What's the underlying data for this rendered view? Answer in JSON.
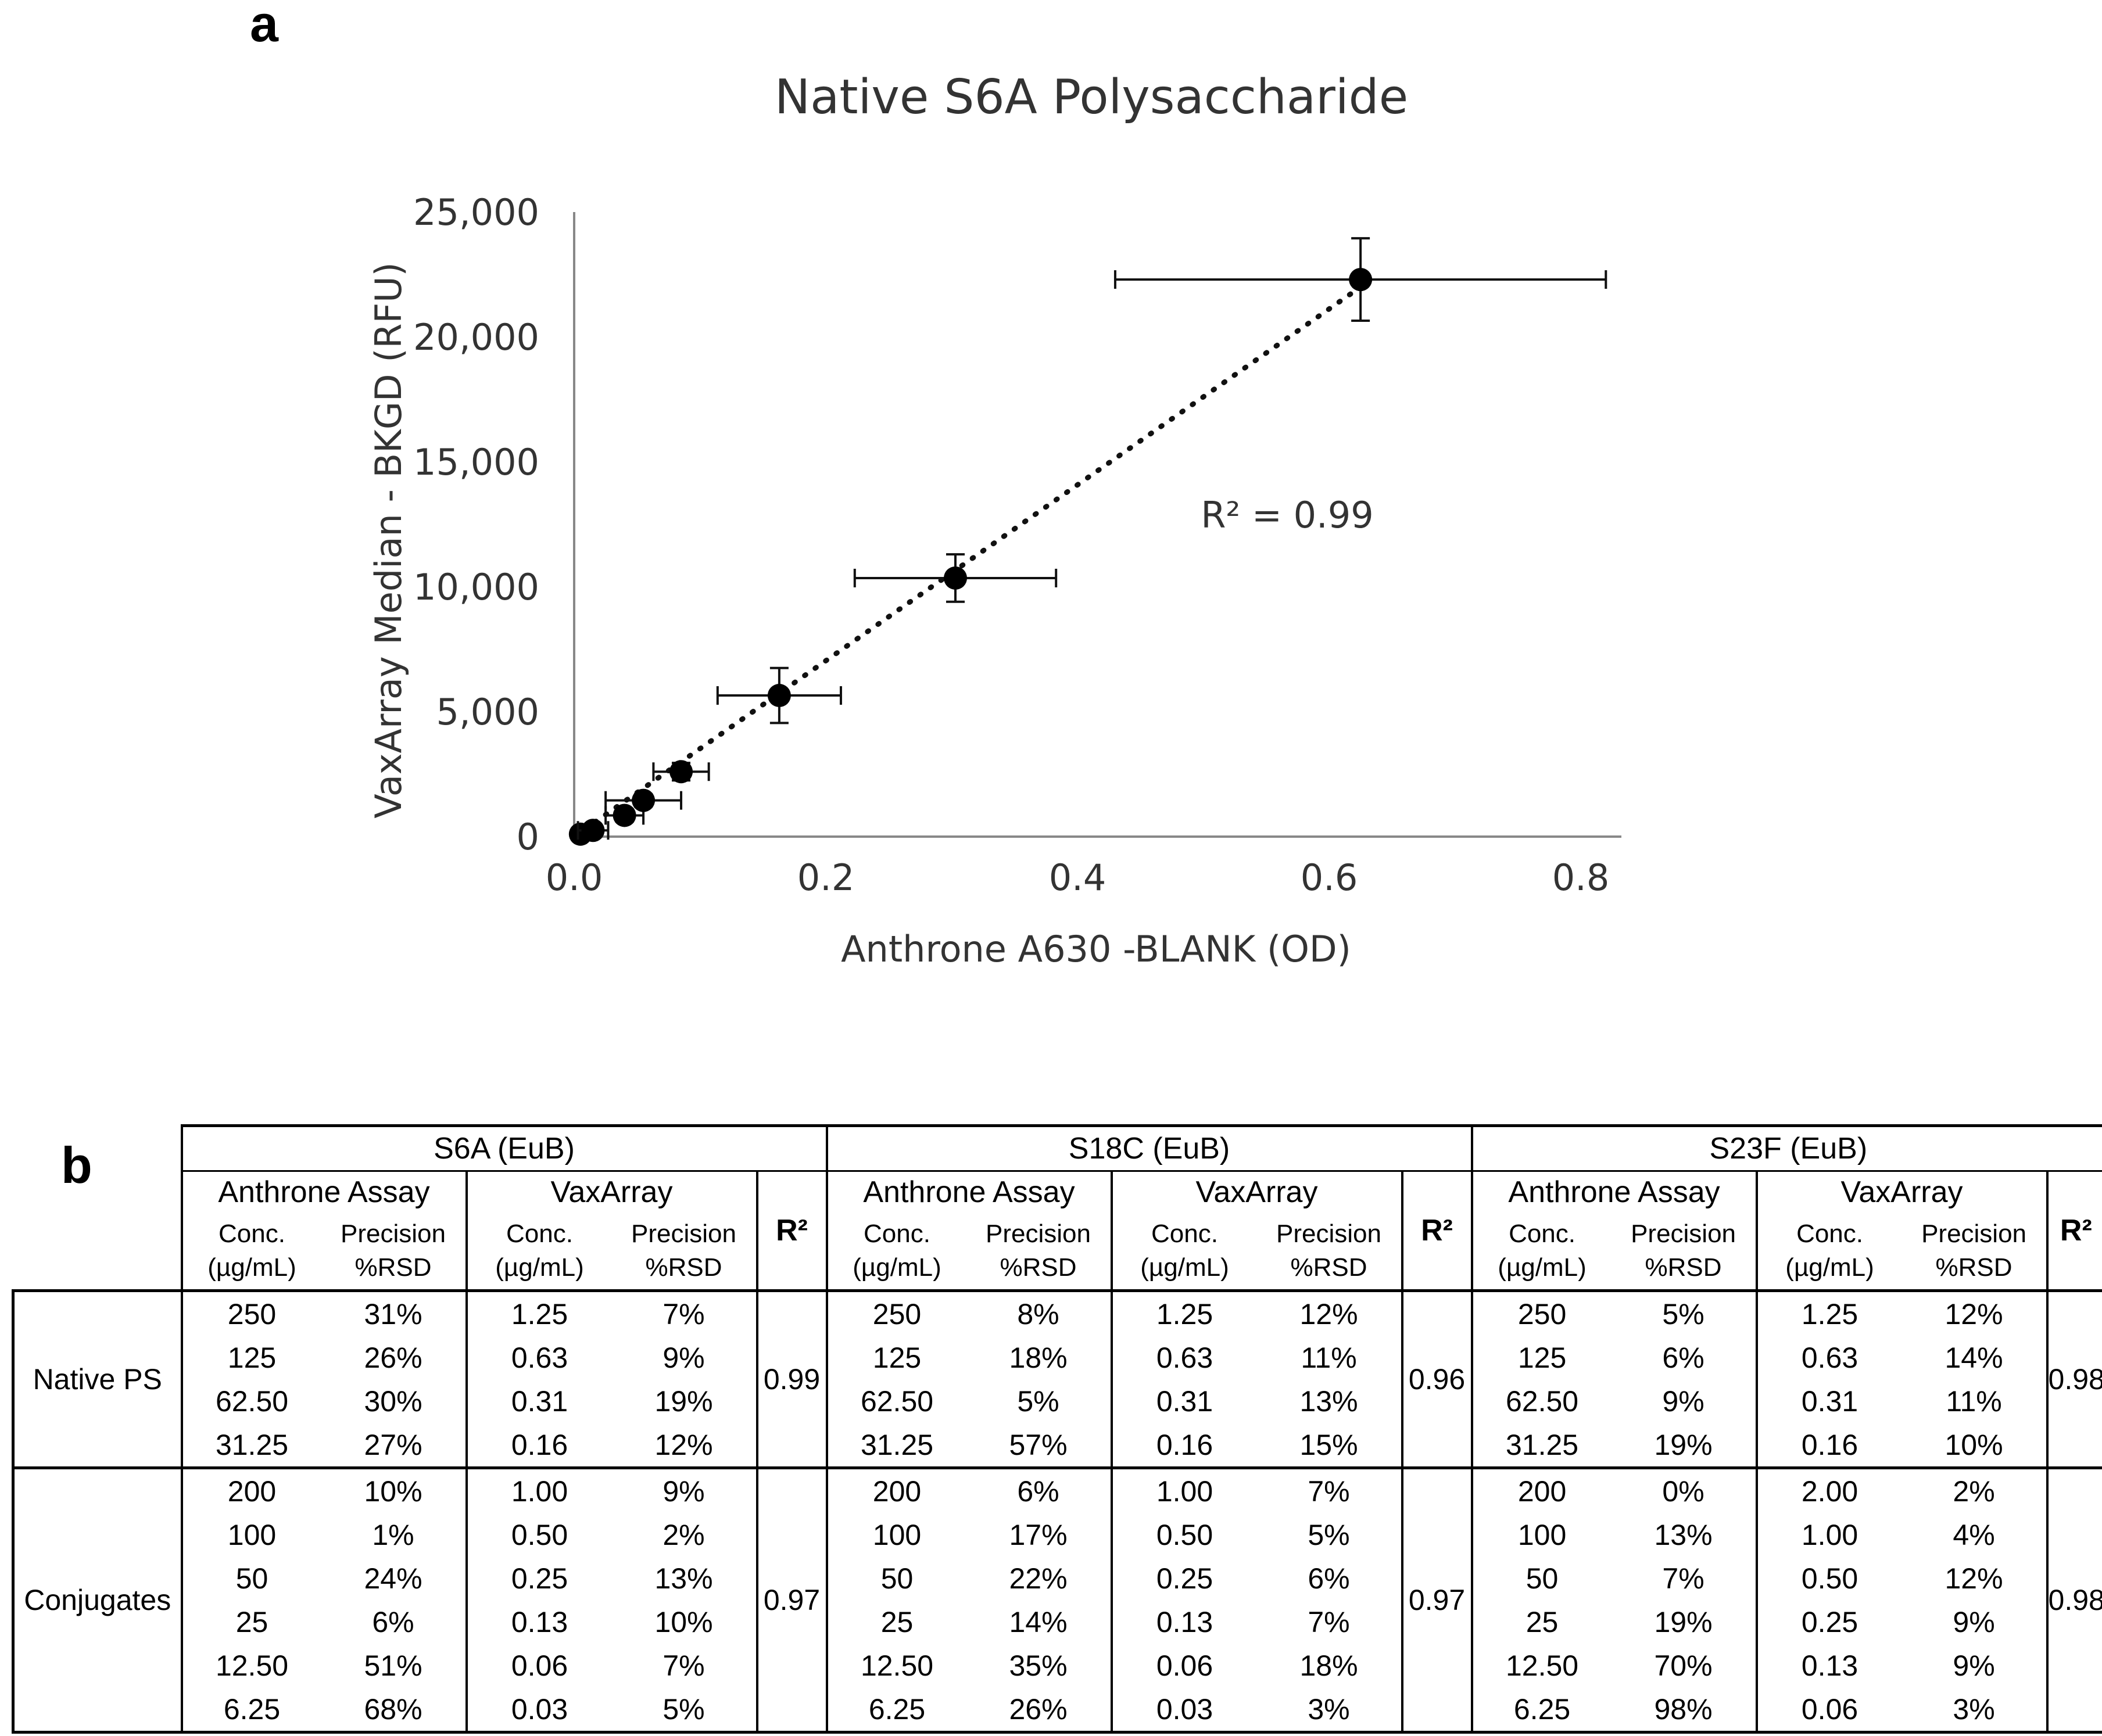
{
  "panel_a_label": "a",
  "panel_b_label": "b",
  "chart_data": {
    "type": "scatter",
    "title": "Native S6A Polysaccharide",
    "xlabel": "Anthrone A630 -BLANK (OD)",
    "ylabel": "VaxArray Median - BKGD (RFU)",
    "xlim": [
      0,
      0.8
    ],
    "ylim": [
      0,
      25000
    ],
    "xticks": [
      "0.0",
      "0.2",
      "0.4",
      "0.6",
      "0.8"
    ],
    "yticks": [
      "0",
      "5,000",
      "10,000",
      "15,000",
      "20,000",
      "25,000"
    ],
    "annotation": "R² = 0.99",
    "trendline": {
      "style": "dotted",
      "x": [
        0.0,
        0.625
      ],
      "y": [
        0,
        22000
      ]
    },
    "points": [
      {
        "x": 0.005,
        "y": 100,
        "xerr": 0.004,
        "yerr": 80
      },
      {
        "x": 0.015,
        "y": 250,
        "xerr": 0.012,
        "yerr": 150
      },
      {
        "x": 0.04,
        "y": 850,
        "xerr": 0.015,
        "yerr": 250
      },
      {
        "x": 0.055,
        "y": 1450,
        "xerr": 0.03,
        "yerr": 250
      },
      {
        "x": 0.085,
        "y": 2600,
        "xerr": 0.022,
        "yerr": 350
      },
      {
        "x": 0.163,
        "y": 5650,
        "xerr": 0.049,
        "yerr": 1100
      },
      {
        "x": 0.303,
        "y": 10350,
        "xerr": 0.08,
        "yerr": 950
      },
      {
        "x": 0.625,
        "y": 22300,
        "xerr": 0.195,
        "yerr": 1650
      }
    ]
  },
  "table": {
    "groups": [
      "S6A (EuB)",
      "S18C (EuB)",
      "S23F (EuB)"
    ],
    "subheads": {
      "anthrone": "Anthrone Assay",
      "vaxarray": "VaxArray",
      "r2": "R²"
    },
    "col_heads": {
      "conc_1": "Conc.",
      "conc_2": "(µg/mL)",
      "prec_1": "Precision",
      "prec_2": "%RSD"
    },
    "sections": [
      {
        "label": "Native PS",
        "r2": [
          "0.99",
          "0.96",
          "0.98"
        ],
        "rows": [
          [
            [
              "250",
              "31%",
              "1.25",
              "7%"
            ],
            [
              "250",
              "8%",
              "1.25",
              "12%"
            ],
            [
              "250",
              "5%",
              "1.25",
              "12%"
            ]
          ],
          [
            [
              "125",
              "26%",
              "0.63",
              "9%"
            ],
            [
              "125",
              "18%",
              "0.63",
              "11%"
            ],
            [
              "125",
              "6%",
              "0.63",
              "14%"
            ]
          ],
          [
            [
              "62.50",
              "30%",
              "0.31",
              "19%"
            ],
            [
              "62.50",
              "5%",
              "0.31",
              "13%"
            ],
            [
              "62.50",
              "9%",
              "0.31",
              "11%"
            ]
          ],
          [
            [
              "31.25",
              "27%",
              "0.16",
              "12%"
            ],
            [
              "31.25",
              "57%",
              "0.16",
              "15%"
            ],
            [
              "31.25",
              "19%",
              "0.16",
              "10%"
            ]
          ]
        ]
      },
      {
        "label": "Conjugates",
        "r2": [
          "0.97",
          "0.97",
          "0.98"
        ],
        "rows": [
          [
            [
              "200",
              "10%",
              "1.00",
              "9%"
            ],
            [
              "200",
              "6%",
              "1.00",
              "7%"
            ],
            [
              "200",
              "0%",
              "2.00",
              "2%"
            ]
          ],
          [
            [
              "100",
              "1%",
              "0.50",
              "2%"
            ],
            [
              "100",
              "17%",
              "0.50",
              "5%"
            ],
            [
              "100",
              "13%",
              "1.00",
              "4%"
            ]
          ],
          [
            [
              "50",
              "24%",
              "0.25",
              "13%"
            ],
            [
              "50",
              "22%",
              "0.25",
              "6%"
            ],
            [
              "50",
              "7%",
              "0.50",
              "12%"
            ]
          ],
          [
            [
              "25",
              "6%",
              "0.13",
              "10%"
            ],
            [
              "25",
              "14%",
              "0.13",
              "7%"
            ],
            [
              "25",
              "19%",
              "0.25",
              "9%"
            ]
          ],
          [
            [
              "12.50",
              "51%",
              "0.06",
              "7%"
            ],
            [
              "12.50",
              "35%",
              "0.06",
              "18%"
            ],
            [
              "12.50",
              "70%",
              "0.13",
              "9%"
            ]
          ],
          [
            [
              "6.25",
              "68%",
              "0.03",
              "5%"
            ],
            [
              "6.25",
              "26%",
              "0.03",
              "3%"
            ],
            [
              "6.25",
              "98%",
              "0.06",
              "3%"
            ]
          ]
        ]
      }
    ]
  }
}
